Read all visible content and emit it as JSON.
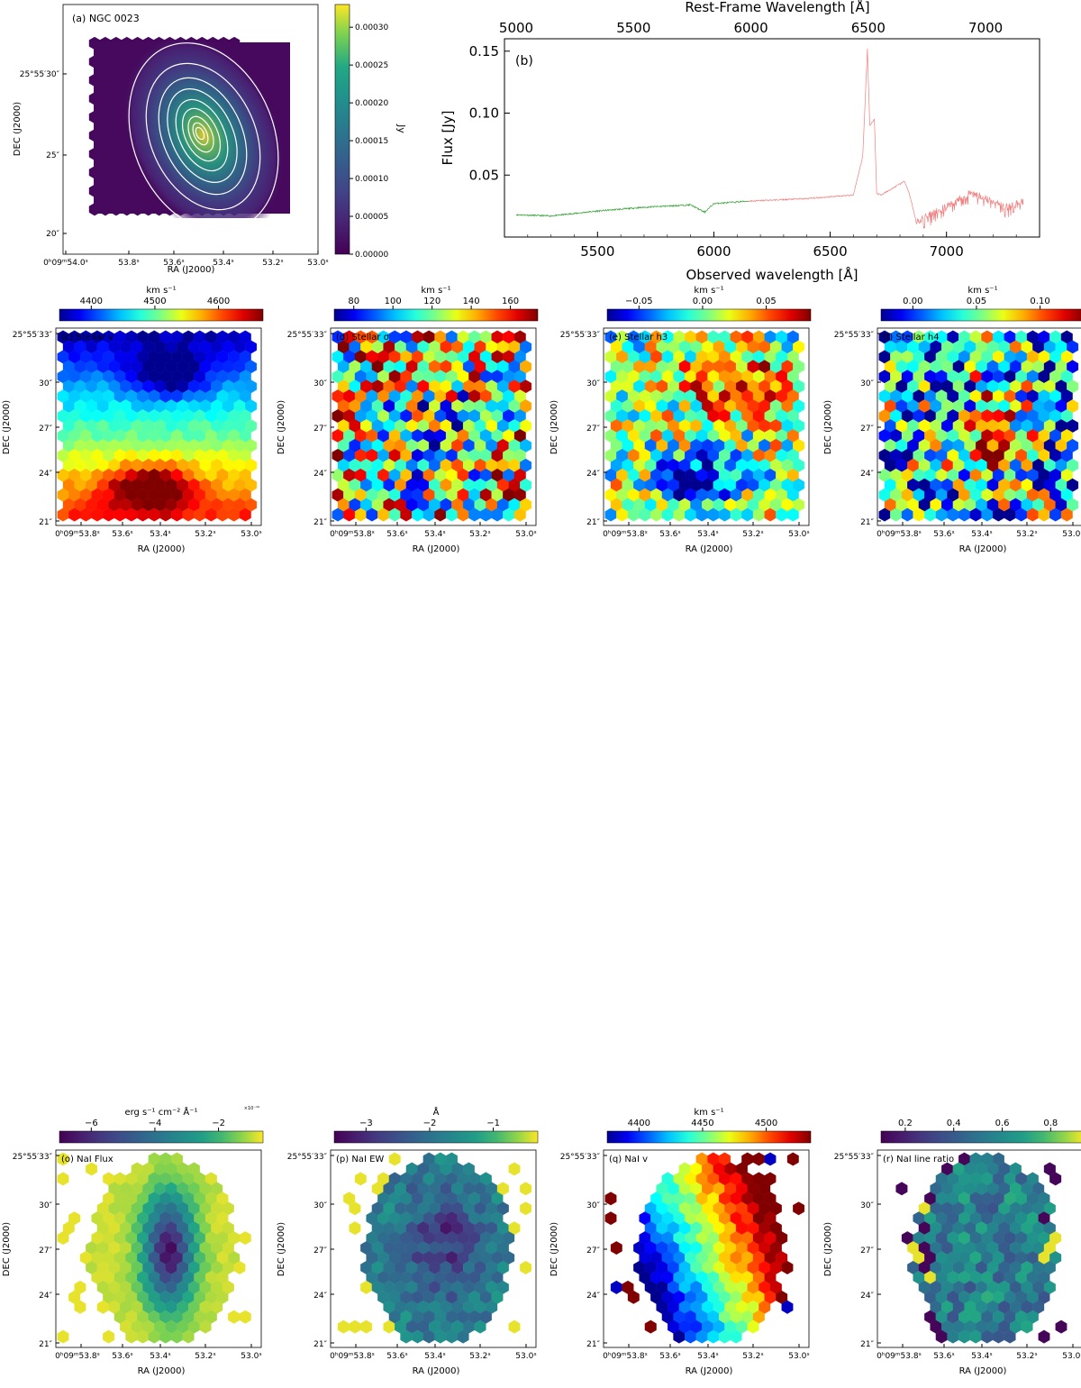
{
  "panel_a": {
    "label": "(a) NGC 0023",
    "xlabel": "RA (J2000)",
    "ylabel": "DEC (J2000)",
    "xticks": [
      "0ʰ09ᵐ54.0ˢ",
      "53.8ˢ",
      "53.6ˢ",
      "53.4ˢ",
      "53.2ˢ",
      "53.0ˢ"
    ],
    "yticks": [
      "25°55′30″",
      "25″",
      "20″"
    ],
    "colorbar_label": "Jy",
    "colorbar_ticks": [
      "0.00000",
      "0.00005",
      "0.00010",
      "0.00015",
      "0.00020",
      "0.00025",
      "0.00030"
    ],
    "colors": {
      "low": "#440154",
      "high": "#fde725",
      "contour": "#ffffff"
    }
  },
  "panel_b": {
    "label": "(b)",
    "top_xlabel": "Rest-Frame Wavelength [Å]",
    "bottom_xlabel": "Observed wavelength [Å]",
    "ylabel": "Flux [Jy]",
    "top_ticks": [
      "5000",
      "5500",
      "6000",
      "6500",
      "7000"
    ],
    "bottom_ticks": [
      "5500",
      "6000",
      "6500",
      "7000"
    ],
    "yticks": [
      "0.05",
      "0.10",
      "0.15"
    ],
    "colors": {
      "blue_part": "#2ca02c",
      "red_part": "#f08080"
    }
  },
  "maps": [
    {
      "id": "c",
      "label": "(c) Stellar v",
      "cb_unit": "km s⁻¹",
      "cb_ticks": [
        "4400",
        "4500",
        "4600"
      ],
      "cmap": "jet"
    },
    {
      "id": "d",
      "label": "(d) Stellar σ",
      "cb_unit": "km s⁻¹",
      "cb_ticks": [
        "80",
        "100",
        "120",
        "140",
        "160"
      ],
      "cmap": "jet"
    },
    {
      "id": "e",
      "label": "(e) Stellar h3",
      "cb_unit": "km s⁻¹",
      "cb_ticks": [
        "−0.05",
        "0.00",
        "0.05"
      ],
      "cmap": "jet"
    },
    {
      "id": "f",
      "label": "(f) Stellar h4",
      "cb_unit": "km s⁻¹",
      "cb_ticks": [
        "0.00",
        "0.05",
        "0.10"
      ],
      "cmap": "jet"
    },
    {
      "id": "o",
      "label": "(o) NaI Flux",
      "cb_unit": "erg s⁻¹ cm⁻² Å⁻¹",
      "cb_exp": "×10⁻¹⁶",
      "cb_ticks": [
        "−6",
        "−4",
        "−2"
      ],
      "cmap": "viridis"
    },
    {
      "id": "p",
      "label": "(p) NaI EW",
      "cb_unit": "Å",
      "cb_ticks": [
        "−3",
        "−2",
        "−1"
      ],
      "cmap": "viridis"
    },
    {
      "id": "q",
      "label": "(q) NaI v",
      "cb_unit": "km s⁻¹",
      "cb_ticks": [
        "4400",
        "4450",
        "4500"
      ],
      "cmap": "jet"
    },
    {
      "id": "r",
      "label": "(r) NaI line ratio",
      "cb_unit": "",
      "cb_ticks": [
        "0.2",
        "0.4",
        "0.6",
        "0.8"
      ],
      "cmap": "viridis"
    }
  ],
  "map_axes": {
    "xlabel": "RA (J2000)",
    "ylabel": "DEC (J2000)",
    "xticks": [
      "0ʰ09ᵐ53.8ˢ",
      "53.6ˢ",
      "53.4ˢ",
      "53.2ˢ",
      "53.0ˢ"
    ],
    "yticks": [
      "25°55′33″",
      "30″",
      "27″",
      "24″",
      "21″"
    ]
  },
  "chart_data": [
    {
      "type": "heatmap",
      "title": "(a) NGC 0023",
      "xlabel": "RA (J2000)",
      "ylabel": "DEC (J2000)",
      "colorbar": "Jy",
      "zlim": [
        0.0,
        0.00033
      ],
      "peak": 0.00033,
      "contours": true
    },
    {
      "type": "line",
      "title": "(b)",
      "xlabel": "Observed wavelength [Å]",
      "ylabel": "Flux [Jy]",
      "xlim": [
        5100,
        7400
      ],
      "ylim": [
        0.0,
        0.16
      ],
      "x": [
        5150,
        5300,
        5500,
        5700,
        5900,
        5960,
        6000,
        6150,
        6400,
        6600,
        6640,
        6660,
        6670,
        6690,
        6700,
        6720,
        6820,
        6840,
        6870,
        7100,
        7180,
        7250,
        7330
      ],
      "y": [
        0.018,
        0.017,
        0.021,
        0.024,
        0.026,
        0.02,
        0.027,
        0.029,
        0.031,
        0.034,
        0.065,
        0.152,
        0.09,
        0.095,
        0.035,
        0.034,
        0.045,
        0.035,
        0.012,
        0.035,
        0.031,
        0.024,
        0.028
      ],
      "series": [
        {
          "name": "blue",
          "range": [
            5150,
            6150
          ]
        },
        {
          "name": "red",
          "range": [
            6150,
            7330
          ]
        }
      ],
      "secondary_xlabel": "Rest-Frame Wavelength [Å]",
      "secondary_xlim": [
        4950,
        7230
      ]
    },
    {
      "type": "heatmap",
      "title": "(c) Stellar v",
      "zlim": [
        4320,
        4680
      ],
      "colorbar": "km s⁻¹"
    },
    {
      "type": "heatmap",
      "title": "(d) Stellar σ",
      "zlim": [
        65,
        165
      ],
      "colorbar": "km s⁻¹"
    },
    {
      "type": "heatmap",
      "title": "(e) Stellar h3",
      "zlim": [
        -0.09,
        0.1
      ],
      "colorbar": "km s⁻¹"
    },
    {
      "type": "heatmap",
      "title": "(f) Stellar h4",
      "zlim": [
        -0.03,
        0.12
      ],
      "colorbar": "km s⁻¹"
    },
    {
      "type": "heatmap",
      "title": "(o) NaI Flux",
      "zlim": [
        -6.6,
        -0.8
      ],
      "colorbar": "erg s⁻¹ cm⁻² Å⁻¹"
    },
    {
      "type": "heatmap",
      "title": "(p) NaI EW",
      "zlim": [
        -3.3,
        -0.3
      ],
      "colorbar": "Å"
    },
    {
      "type": "heatmap",
      "title": "(q) NaI v",
      "zlim": [
        4360,
        4540
      ],
      "colorbar": "km s⁻¹"
    },
    {
      "type": "heatmap",
      "title": "(r) NaI line ratio",
      "zlim": [
        0.05,
        0.9
      ],
      "colorbar": ""
    }
  ]
}
